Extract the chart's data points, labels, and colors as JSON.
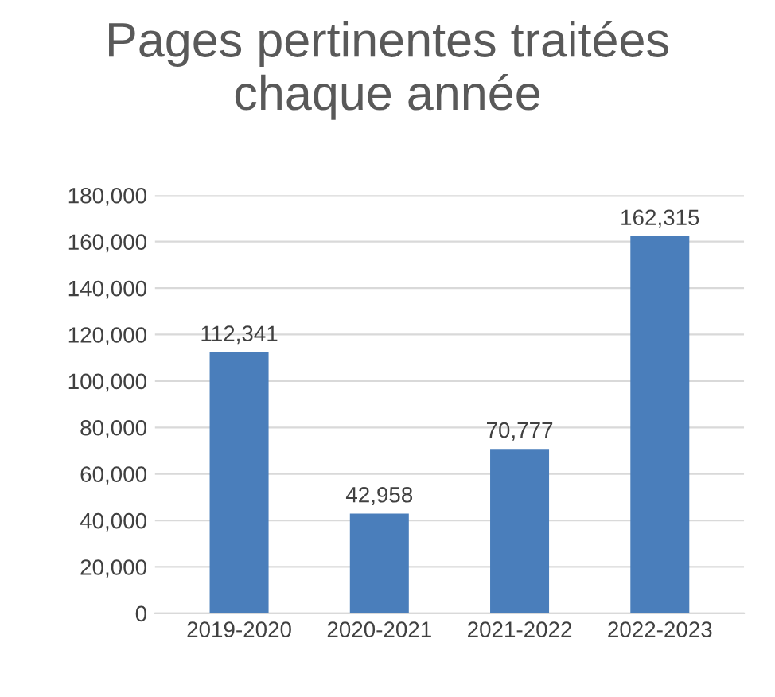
{
  "chart_data": {
    "type": "bar",
    "title": "Pages pertinentes traitées\nchaque année",
    "categories": [
      "2019-2020",
      "2020-2021",
      "2021-2022",
      "2022-2023"
    ],
    "values": [
      112341,
      42958,
      70777,
      162315
    ],
    "value_labels": [
      "112,341",
      "42,958",
      "70,777",
      "162,315"
    ],
    "color": "#4a7ebb",
    "ylim": [
      0,
      180000
    ],
    "yticks": [
      {
        "value": 0,
        "label": "0"
      },
      {
        "value": 20000,
        "label": "20,000"
      },
      {
        "value": 40000,
        "label": "40,000"
      },
      {
        "value": 60000,
        "label": "60,000"
      },
      {
        "value": 80000,
        "label": "80,000"
      },
      {
        "value": 100000,
        "label": "100,000"
      },
      {
        "value": 120000,
        "label": "120,000"
      },
      {
        "value": 140000,
        "label": "140,000"
      },
      {
        "value": 160000,
        "label": "160,000"
      },
      {
        "value": 180000,
        "label": "180,000"
      }
    ],
    "grid": "y",
    "legend": false
  }
}
